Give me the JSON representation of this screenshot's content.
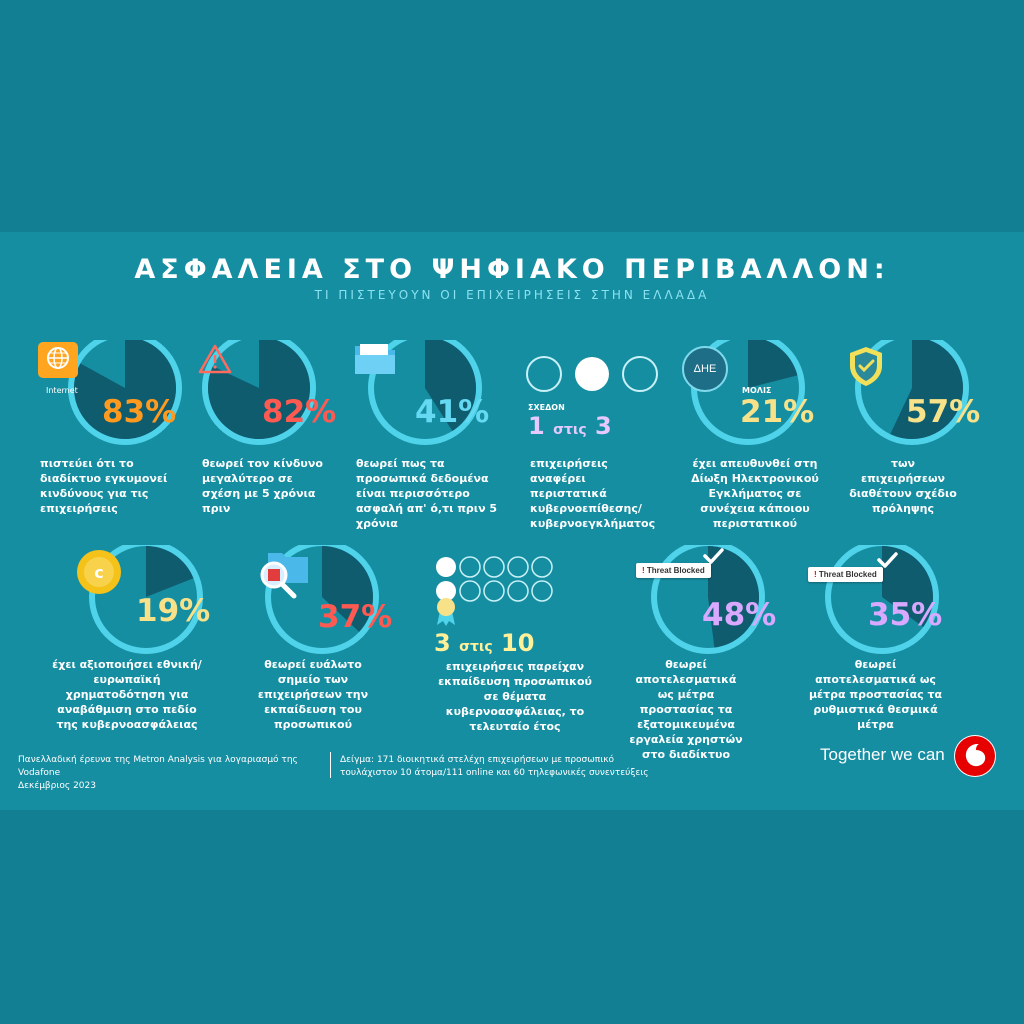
{
  "header": {
    "title": "ΑΣΦΑΛΕΙΑ ΣΤΟ ΨΗΦΙΑΚΟ ΠΕΡΙΒΑΛΛΟΝ:",
    "subtitle": "ΤΙ ΠΙΣΤΕΥΟΥΝ ΟΙ ΕΠΙΧΕΙΡΗΣΕΙΣ ΣΤΗΝ ΕΛΛΑΔΑ"
  },
  "colors": {
    "background": "#137f93",
    "band": "#168ea2",
    "ring": "#4fd3ea",
    "pie": "#0f5c6f",
    "orange": "#ff9a1f",
    "red": "#ff5a52",
    "lightblue": "#66d9f2",
    "yellow": "#f7e28a",
    "purple": "#d9a8ff",
    "vodafone_red": "#e60000"
  },
  "stats_row1": [
    {
      "value": "83%",
      "fraction": 0.83,
      "color": "#ff9a1f",
      "icon": "internet-globe-icon",
      "icon_label": "Internet",
      "desc": "πιστεύει ότι το διαδίκτυο εγκυμονεί κινδύνους για τις επιχειρήσεις"
    },
    {
      "value": "82%",
      "fraction": 0.82,
      "color": "#ff5a52",
      "icon": "warning-icon",
      "desc": "θεωρεί τον κίνδυνο μεγαλύτερο σε σχέση με 5 χρόνια πριν"
    },
    {
      "value": "41%",
      "fraction": 0.41,
      "color": "#66d9f2",
      "icon": "folder-icon",
      "desc": "θεωρεί πως τα προσωπικά δεδομένα είναι περισσότερο ασφαλή απ' ό,τι πριν 5 χρόνια"
    },
    {
      "prefix": "ΣΧΕΔΟΝ",
      "ratio_a": "1",
      "ratio_mid": "στις",
      "ratio_b": "3",
      "desc": "επιχειρήσεις αναφέρει περιστατικά κυβερνοεπίθεσης/ κυβερνοεγκλήματος"
    },
    {
      "value": "21%",
      "fraction": 0.21,
      "color": "#f7e28a",
      "icon": "dhe-badge-icon",
      "icon_label": "ΔΗΕ",
      "prefix": "ΜΟΛΙΣ",
      "desc": "έχει απευθυνθεί στη Δίωξη Ηλεκτρονικού Εγκλήματος σε συνέχεια κάποιου περιστατικού"
    },
    {
      "value": "57%",
      "fraction": 0.57,
      "color": "#f7e28a",
      "icon": "shield-check-icon",
      "desc": "των επιχειρήσεων διαθέτουν σχέδιο πρόληψης"
    }
  ],
  "stats_row2": [
    {
      "value": "19%",
      "fraction": 0.19,
      "color": "#f7e28a",
      "icon": "coin-icon",
      "desc": "έχει αξιοποιήσει εθνική/ ευρωπαϊκή χρηματοδότηση για αναβάθμιση στο πεδίο της κυβερνοασφάλειας"
    },
    {
      "value": "37%",
      "fraction": 0.37,
      "color": "#ff5a52",
      "icon": "magnifier-bug-icon",
      "desc": "θεωρεί ευάλωτο σημείο των επιχειρήσεων την εκπαίδευση του προσωπικού"
    },
    {
      "ratio_a": "3",
      "ratio_mid": "στις",
      "ratio_b": "10",
      "desc": "επιχειρήσεις παρείχαν εκπαίδευση προσωπικού σε θέματα κυβερνοασφάλειας, το τελευταίο έτος"
    },
    {
      "value": "48%",
      "fraction": 0.48,
      "color": "#d9a8ff",
      "icon": "threat-blocked-icon",
      "icon_label": "Threat Blocked",
      "desc": "θεωρεί αποτελεσματικά ως μέτρα προστασίας τα εξατομικευμένα εργαλεία χρηστών στο διαδίκτυο"
    },
    {
      "value": "35%",
      "fraction": 0.35,
      "color": "#d9a8ff",
      "icon": "threat-blocked-icon",
      "icon_label": "Threat Blocked",
      "desc": "θεωρεί αποτελεσματικά ως μέτρα προστασίας τα ρυθμιστικά θεσμικά μέτρα"
    }
  ],
  "footer": {
    "survey": "Πανελλαδική έρευνα της Metron Analysis για λογαριασμό της Vodafone",
    "date": "Δεκέμβριος 2023",
    "sample_line1": "Δείγμα: 171 διοικητικά στελέχη επιχειρήσεων με προσωπικό",
    "sample_line2": "τουλάχιστον 10 άτομα/111 online και 60 τηλεφωνικές συνεντεύξεις",
    "tagline": "Together we can",
    "logo": "vodafone-logo-icon"
  }
}
